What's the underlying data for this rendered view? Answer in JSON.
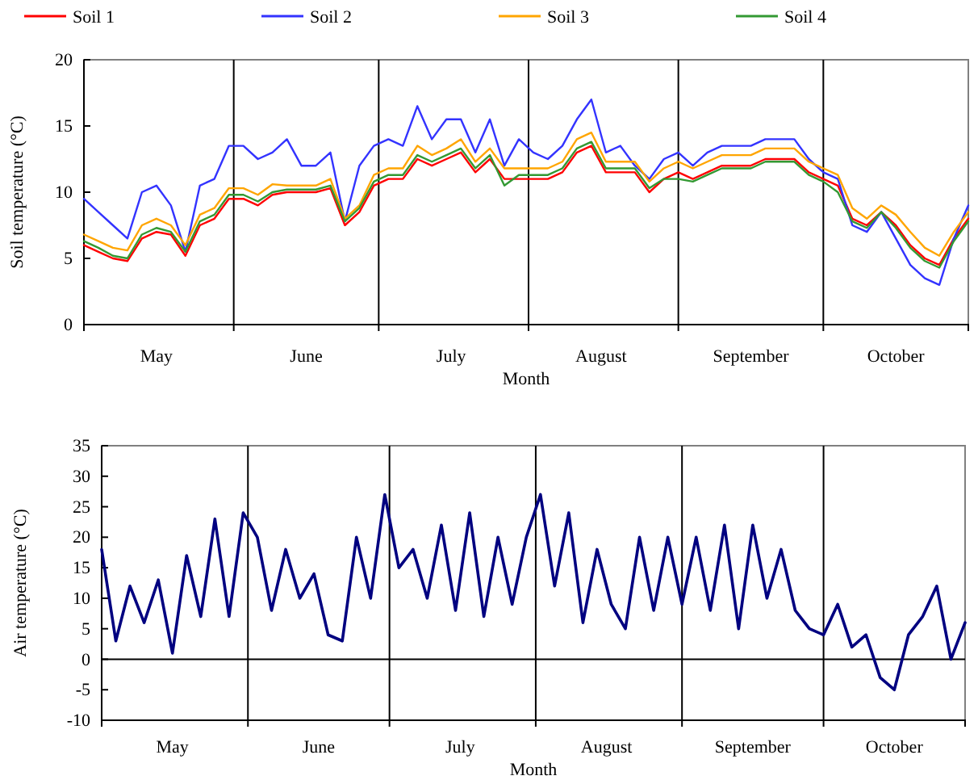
{
  "chart_data": [
    {
      "type": "line",
      "ylabel": "Soil temperature (°C)",
      "xlabel": "Month",
      "legend": "top",
      "x": [
        "--05-01",
        "--05-04",
        "--05-07",
        "--05-10",
        "--05-13",
        "--05-16",
        "--05-19",
        "--05-22",
        "--05-25",
        "--05-28",
        "--05-31",
        "--06-03",
        "--06-06",
        "--06-09",
        "--06-12",
        "--06-15",
        "--06-18",
        "--06-21",
        "--06-24",
        "--06-27",
        "--06-30",
        "--07-03",
        "--07-06",
        "--07-09",
        "--07-12",
        "--07-15",
        "--07-18",
        "--07-21",
        "--07-24",
        "--07-27",
        "--07-30",
        "--08-02",
        "--08-05",
        "--08-08",
        "--08-11",
        "--08-14",
        "--08-17",
        "--08-20",
        "--08-23",
        "--08-26",
        "--08-29",
        "--09-01",
        "--09-04",
        "--09-07",
        "--09-10",
        "--09-13",
        "--09-16",
        "--09-19",
        "--09-22",
        "--09-25",
        "--09-28",
        "--10-01",
        "--10-04",
        "--10-07",
        "--10-10",
        "--10-13",
        "--10-16",
        "--10-19",
        "--10-22",
        "--10-25",
        "--10-28",
        "--10-31"
      ],
      "xlim": [
        "--05-01",
        "--10-31"
      ],
      "xticks": [
        {
          "value": "--05-16",
          "label": "May"
        },
        {
          "value": "--06-01",
          "label": null
        },
        {
          "value": "--06-16",
          "label": "June"
        },
        {
          "value": "--07-01",
          "label": null
        },
        {
          "value": "--07-16",
          "label": "July"
        },
        {
          "value": "--08-01",
          "label": null
        },
        {
          "value": "--08-16",
          "label": "August"
        },
        {
          "value": "--09-01",
          "label": null
        },
        {
          "value": "--09-16",
          "label": "September"
        },
        {
          "value": "--10-01",
          "label": null
        },
        {
          "value": "--10-16",
          "label": "October"
        }
      ],
      "ylim": [
        0,
        20
      ],
      "yticks": [
        0,
        5,
        10,
        15,
        20
      ],
      "ref_lines": [
        {
          "axis": "x",
          "value": "--06-01",
          "color": "#000000"
        },
        {
          "axis": "x",
          "value": "--07-01",
          "color": "#000000"
        },
        {
          "axis": "x",
          "value": "--08-01",
          "color": "#000000"
        },
        {
          "axis": "x",
          "value": "--09-01",
          "color": "#000000"
        },
        {
          "axis": "x",
          "value": "--10-01",
          "color": "#000000"
        }
      ],
      "series": [
        {
          "name": "Soil 1",
          "color": "#ff0000",
          "values": [
            6,
            5.5,
            5,
            4.8,
            6.5,
            7,
            6.8,
            5.2,
            7.5,
            8,
            9.5,
            9.5,
            9,
            9.8,
            10,
            10,
            10,
            10.3,
            7.5,
            8.5,
            10.5,
            11,
            11,
            12.5,
            12,
            12.5,
            13,
            11.5,
            12.5,
            11,
            11,
            11,
            11,
            11.5,
            13,
            13.5,
            11.5,
            11.5,
            11.5,
            10,
            11,
            11.5,
            11,
            11.5,
            12,
            12,
            12,
            12.5,
            12.5,
            12.5,
            11.5,
            11,
            10.5,
            8,
            7.5,
            8.5,
            7.5,
            6,
            5,
            4.5,
            6.5,
            8
          ]
        },
        {
          "name": "Soil 2",
          "color": "#3333ff",
          "values": [
            9.5,
            8.5,
            7.5,
            6.5,
            10,
            10.5,
            9,
            5.5,
            10.5,
            11,
            13.5,
            13.5,
            12.5,
            13,
            14,
            12,
            12,
            13,
            7.8,
            12,
            13.5,
            14,
            13.5,
            16.5,
            14,
            15.5,
            15.5,
            13,
            15.5,
            12,
            14,
            13,
            12.5,
            13.5,
            15.5,
            17,
            13,
            13.5,
            12,
            11,
            12.5,
            13,
            12,
            13,
            13.5,
            13.5,
            13.5,
            14,
            14,
            14,
            12.5,
            11.5,
            11,
            7.5,
            7,
            8.5,
            6.5,
            4.5,
            3.5,
            3,
            6.5,
            9
          ]
        },
        {
          "name": "Soil 3",
          "color": "#ffa500",
          "values": [
            6.8,
            6.3,
            5.8,
            5.6,
            7.5,
            8,
            7.5,
            6,
            8.3,
            8.8,
            10.3,
            10.3,
            9.8,
            10.6,
            10.5,
            10.5,
            10.5,
            11,
            8,
            9,
            11.3,
            11.8,
            11.8,
            13.5,
            12.8,
            13.3,
            14,
            12.3,
            13.3,
            11.8,
            11.8,
            11.8,
            11.8,
            12.3,
            14,
            14.5,
            12.3,
            12.3,
            12.3,
            10.8,
            11.8,
            12.3,
            11.8,
            12.3,
            12.8,
            12.8,
            12.8,
            13.3,
            13.3,
            13.3,
            12.3,
            11.8,
            11.3,
            8.8,
            8,
            9,
            8.3,
            7,
            5.8,
            5.2,
            7,
            8.5
          ]
        },
        {
          "name": "Soil 4",
          "color": "#339933",
          "values": [
            6.3,
            5.8,
            5.2,
            5,
            6.8,
            7.3,
            7,
            5.5,
            7.8,
            8.3,
            9.8,
            9.8,
            9.3,
            10,
            10.2,
            10.2,
            10.2,
            10.5,
            7.8,
            8.8,
            10.8,
            11.3,
            11.3,
            12.8,
            12.3,
            12.8,
            13.3,
            11.8,
            12.8,
            10.5,
            11.3,
            11.3,
            11.3,
            11.8,
            13.3,
            13.8,
            11.8,
            11.8,
            11.8,
            10.3,
            11,
            11,
            10.8,
            11.3,
            11.8,
            11.8,
            11.8,
            12.3,
            12.3,
            12.3,
            11.3,
            10.8,
            10,
            7.8,
            7.3,
            8.5,
            7.3,
            5.8,
            4.8,
            4.3,
            6.3,
            7.8
          ]
        }
      ]
    },
    {
      "type": "line",
      "ylabel": "Air temperature (°C)",
      "xlabel": "Month",
      "x": [
        "--05-01",
        "--05-04",
        "--05-07",
        "--05-10",
        "--05-13",
        "--05-16",
        "--05-19",
        "--05-22",
        "--05-25",
        "--05-28",
        "--05-31",
        "--06-03",
        "--06-06",
        "--06-09",
        "--06-12",
        "--06-15",
        "--06-18",
        "--06-21",
        "--06-24",
        "--06-27",
        "--06-30",
        "--07-03",
        "--07-06",
        "--07-09",
        "--07-12",
        "--07-15",
        "--07-18",
        "--07-21",
        "--07-24",
        "--07-27",
        "--07-30",
        "--08-02",
        "--08-05",
        "--08-08",
        "--08-11",
        "--08-14",
        "--08-17",
        "--08-20",
        "--08-23",
        "--08-26",
        "--08-29",
        "--09-01",
        "--09-04",
        "--09-07",
        "--09-10",
        "--09-13",
        "--09-16",
        "--09-19",
        "--09-22",
        "--09-25",
        "--09-28",
        "--10-01",
        "--10-04",
        "--10-07",
        "--10-10",
        "--10-13",
        "--10-16",
        "--10-19",
        "--10-22",
        "--10-25",
        "--10-28",
        "--10-31"
      ],
      "xlim": [
        "--05-01",
        "--10-31"
      ],
      "xticks": [
        {
          "value": "--05-16",
          "label": "May"
        },
        {
          "value": "--06-01",
          "label": null
        },
        {
          "value": "--06-16",
          "label": "June"
        },
        {
          "value": "--07-01",
          "label": null
        },
        {
          "value": "--07-16",
          "label": "July"
        },
        {
          "value": "--08-01",
          "label": null
        },
        {
          "value": "--08-16",
          "label": "August"
        },
        {
          "value": "--09-01",
          "label": null
        },
        {
          "value": "--09-16",
          "label": "September"
        },
        {
          "value": "--10-01",
          "label": null
        },
        {
          "value": "--10-16",
          "label": "October"
        }
      ],
      "ylim": [
        -10,
        35
      ],
      "yticks": [
        -10,
        -5,
        0,
        5,
        10,
        15,
        20,
        25,
        30,
        35
      ],
      "ref_lines": [
        {
          "axis": "x",
          "value": "--06-01",
          "color": "#000000"
        },
        {
          "axis": "x",
          "value": "--07-01",
          "color": "#000000"
        },
        {
          "axis": "x",
          "value": "--08-01",
          "color": "#000000"
        },
        {
          "axis": "x",
          "value": "--09-01",
          "color": "#000000"
        },
        {
          "axis": "x",
          "value": "--10-01",
          "color": "#000000"
        },
        {
          "axis": "y",
          "value": 0,
          "color": "#000000"
        }
      ],
      "series": [
        {
          "color": "#000080",
          "values": [
            18,
            3,
            12,
            6,
            13,
            1,
            17,
            7,
            23,
            7,
            24,
            20,
            8,
            18,
            10,
            14,
            4,
            3,
            20,
            10,
            27,
            15,
            18,
            10,
            22,
            8,
            24,
            7,
            20,
            9,
            20,
            27,
            12,
            24,
            6,
            18,
            9,
            5,
            20,
            8,
            20,
            9,
            20,
            8,
            22,
            5,
            22,
            10,
            18,
            8,
            5,
            4,
            9,
            2,
            4,
            -3,
            -5,
            4,
            7,
            12,
            0,
            6
          ]
        }
      ]
    }
  ]
}
